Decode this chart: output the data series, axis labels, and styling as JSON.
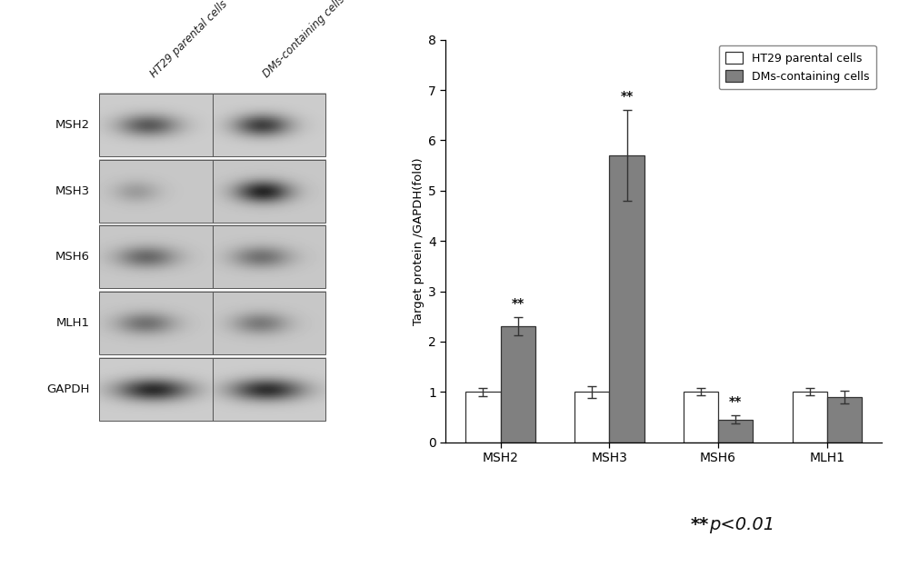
{
  "categories": [
    "MSH2",
    "MSH3",
    "MSH6",
    "MLH1"
  ],
  "ht29_values": [
    1.0,
    1.0,
    1.0,
    1.0
  ],
  "dms_values": [
    2.3,
    5.7,
    0.45,
    0.9
  ],
  "ht29_errors": [
    0.08,
    0.12,
    0.07,
    0.07
  ],
  "dms_errors": [
    0.18,
    0.9,
    0.08,
    0.12
  ],
  "ht29_color": "#ffffff",
  "dms_color": "#808080",
  "bar_edge_color": "#333333",
  "ylabel": "Target protein /GAPDH(fold)",
  "ylim": [
    0,
    8
  ],
  "yticks": [
    0,
    1,
    2,
    3,
    4,
    5,
    6,
    7,
    8
  ],
  "legend_ht29": "HT29 parental cells",
  "legend_dms": "DMs-containing cells",
  "significance_dms": [
    "**",
    "**",
    "**",
    ""
  ],
  "bar_width": 0.32,
  "background_color": "#ffffff",
  "western_blot_labels": [
    "MSH2",
    "MSH3",
    "MSH6",
    "MLH1",
    "GAPDH"
  ],
  "col_labels": [
    "HT29 parental cells",
    "DMs-containing cells"
  ],
  "note_star": "**",
  "note_italic": "p<0.01"
}
